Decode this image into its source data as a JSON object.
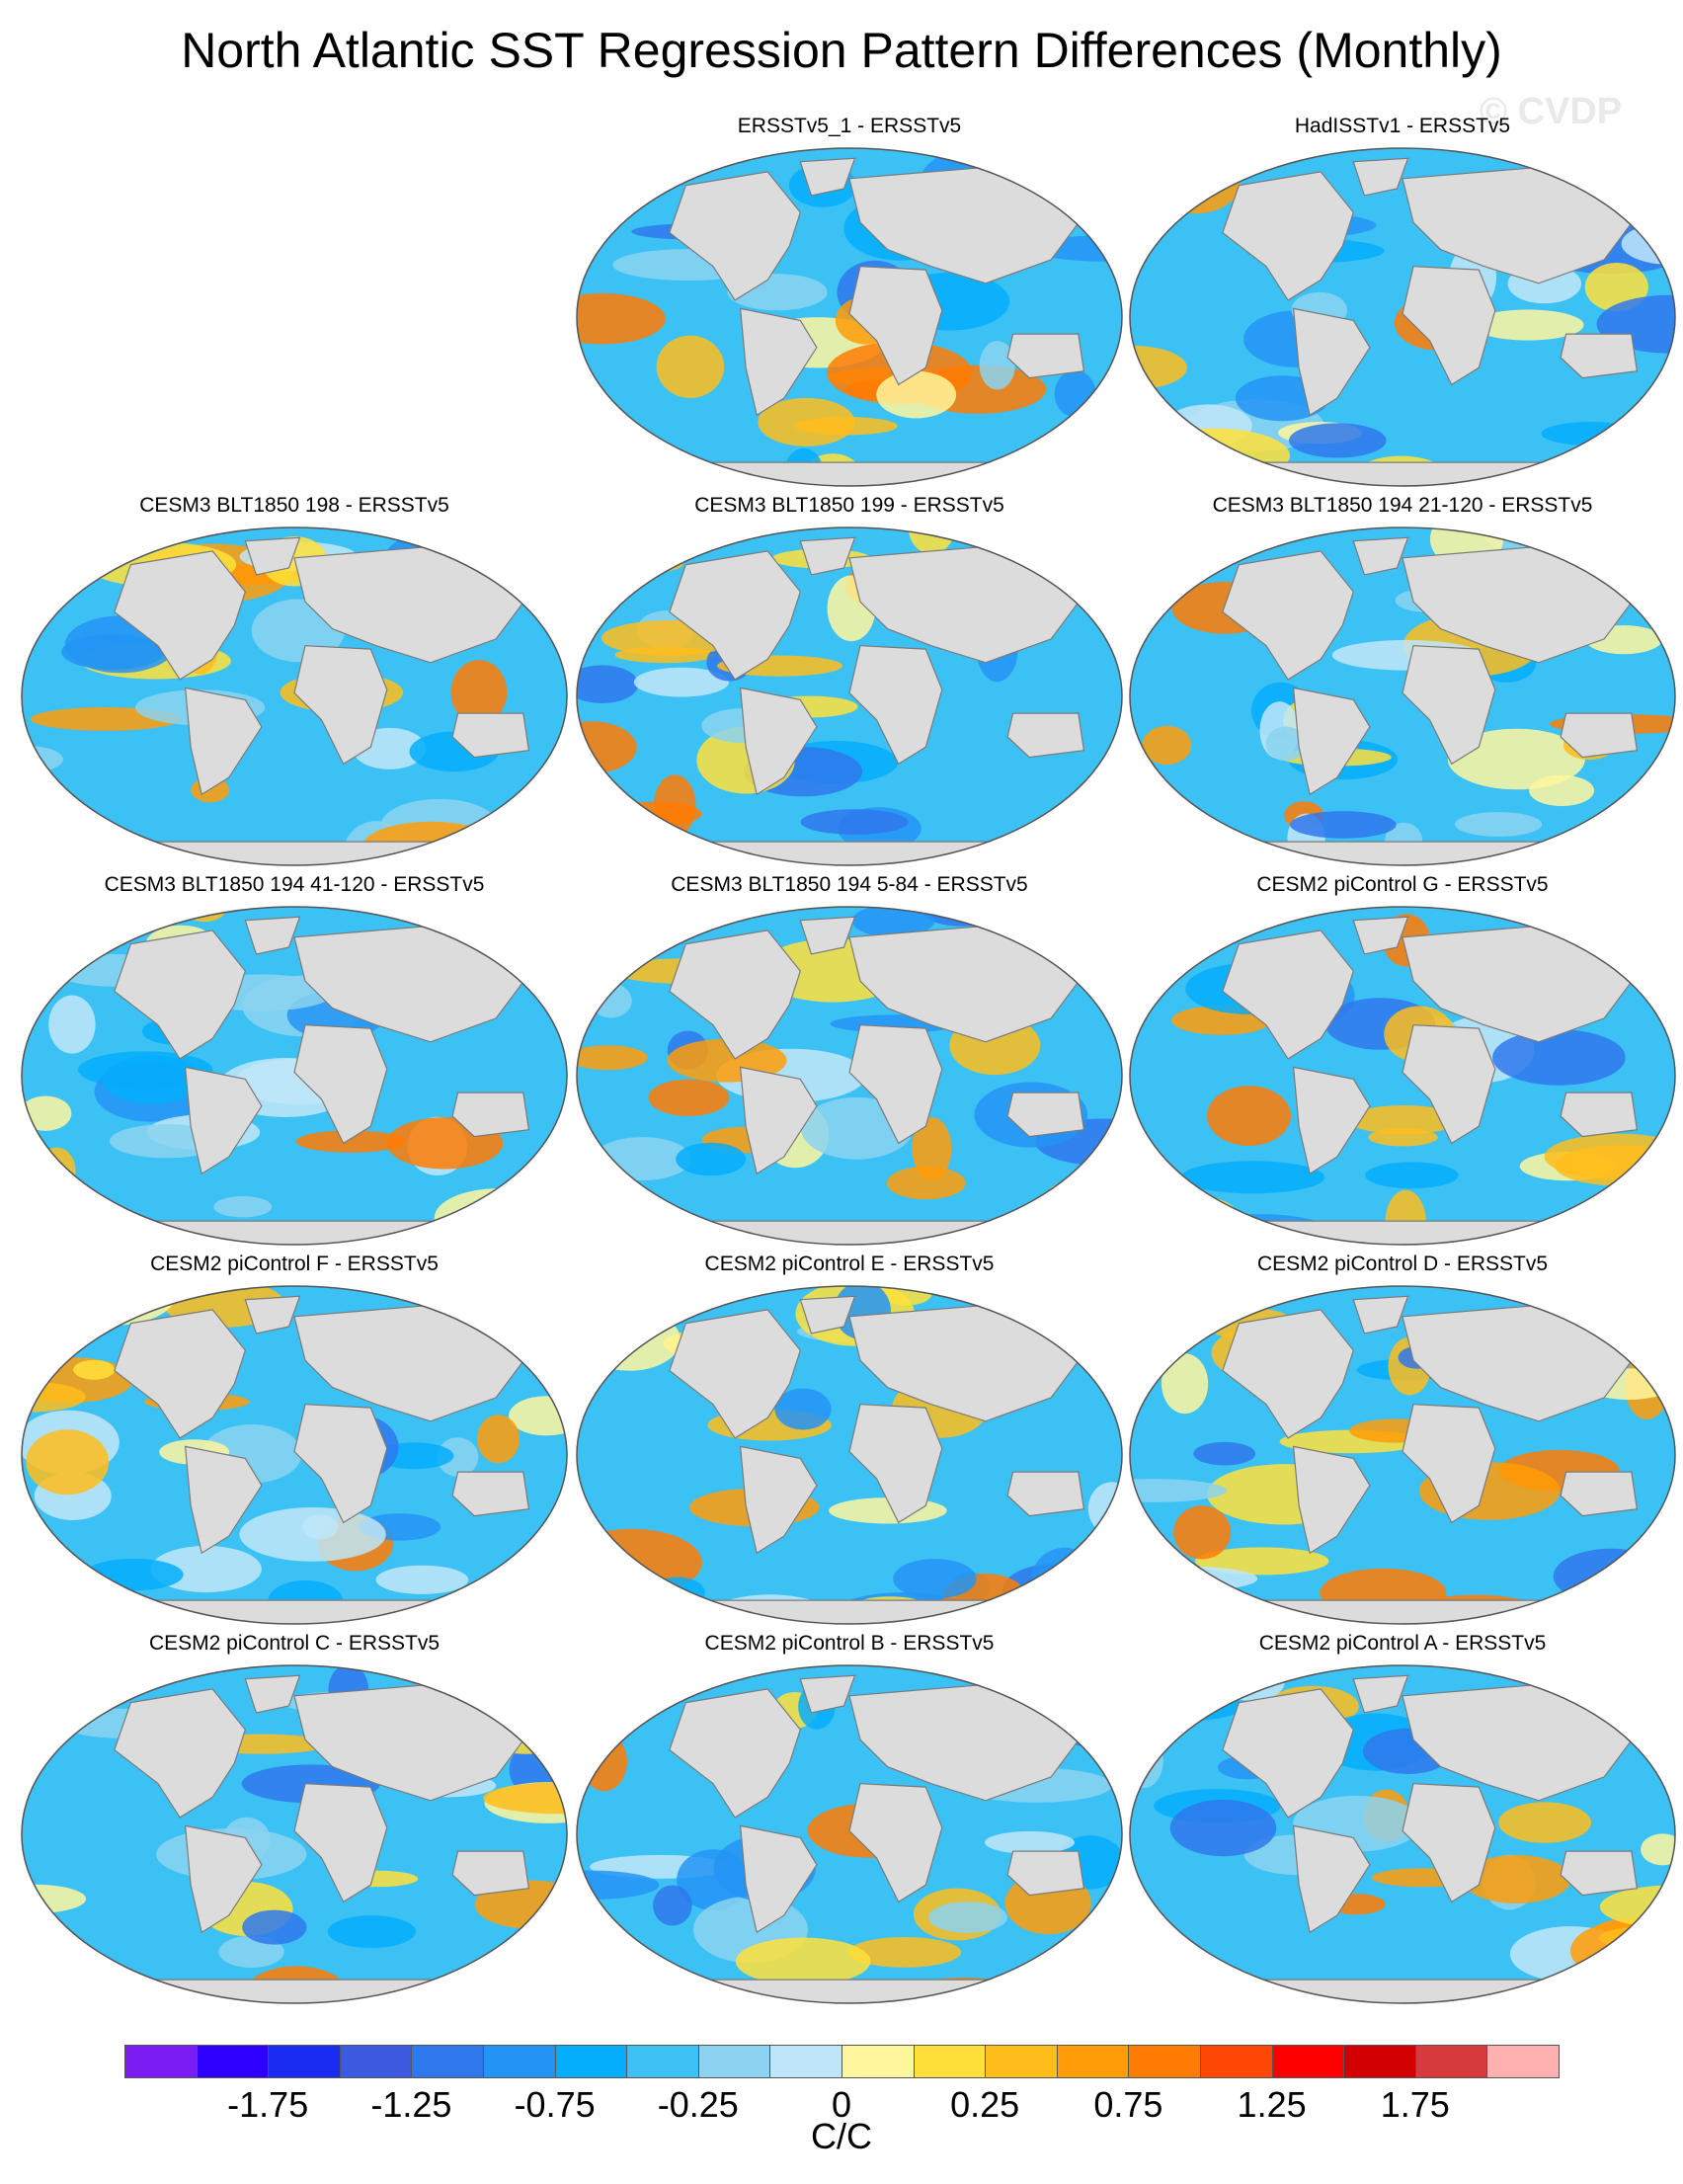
{
  "title": "North Atlantic SST Regression Pattern Differences (Monthly)",
  "watermark": "© CVDP",
  "units": "C/C",
  "colorbar": {
    "colors": [
      "#7b1cf2",
      "#2f00ff",
      "#1b2cf2",
      "#3b5ae0",
      "#2f78ec",
      "#2394f5",
      "#05aefc",
      "#3cc1f5",
      "#8bd3f0",
      "#bfe6f8",
      "#fff69e",
      "#ffe03a",
      "#ffbd1c",
      "#ff9c07",
      "#ff7b02",
      "#ff4706",
      "#ff0000",
      "#d20000",
      "#d63a3a",
      "#ffb0b0"
    ],
    "tick_labels": [
      "-1.75",
      "-1.25",
      "-0.75",
      "-0.25",
      "0",
      "0.25",
      "0.75",
      "1.25",
      "1.75"
    ]
  },
  "panels": [
    {
      "title": "ERSSTv5_1 - ERSSTv5"
    },
    {
      "title": "HadISSTv1 - ERSSTv5"
    },
    {
      "title": "CESM3 BLT1850 198 - ERSSTv5"
    },
    {
      "title": "CESM3 BLT1850 199 - ERSSTv5"
    },
    {
      "title": "CESM3 BLT1850 194 21-120 - ERSSTv5"
    },
    {
      "title": "CESM3 BLT1850 194 41-120 - ERSSTv5"
    },
    {
      "title": "CESM3 BLT1850 194 5-84 - ERSSTv5"
    },
    {
      "title": "CESM2 piControl G - ERSSTv5"
    },
    {
      "title": "CESM2 piControl F - ERSSTv5"
    },
    {
      "title": "CESM2 piControl E - ERSSTv5"
    },
    {
      "title": "CESM2 piControl D - ERSSTv5"
    },
    {
      "title": "CESM2 piControl C - ERSSTv5"
    },
    {
      "title": "CESM2 piControl B - ERSSTv5"
    },
    {
      "title": "CESM2 piControl A - ERSSTv5"
    }
  ]
}
